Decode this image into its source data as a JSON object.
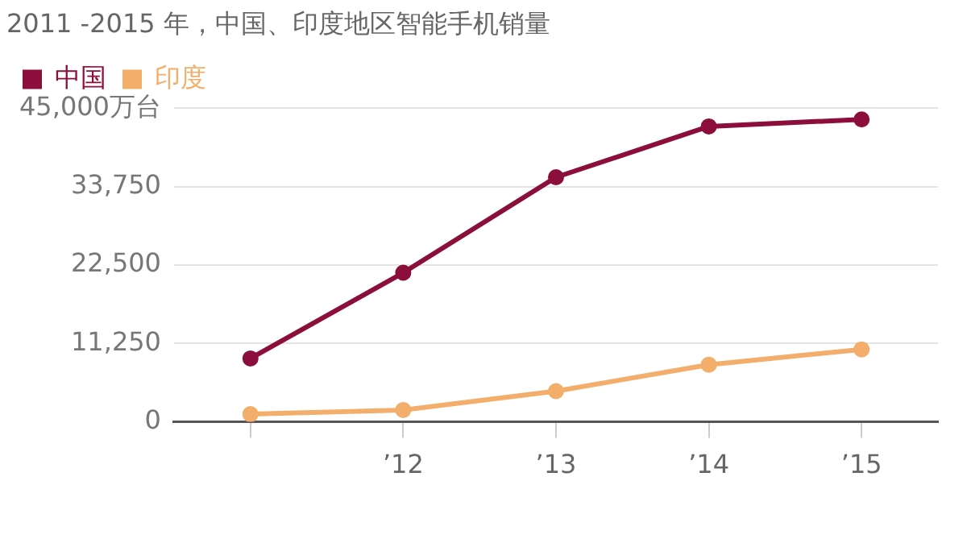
{
  "chart_data": {
    "type": "line",
    "title": "2011 -2015 年，中国、印度地区智能手机销量",
    "categories": [
      null,
      "’12",
      "’13",
      "’14",
      "’15"
    ],
    "series": [
      {
        "name": "中国",
        "color": "#8b0f3a",
        "values": [
          9100,
          21400,
          35100,
          42400,
          43400
        ]
      },
      {
        "name": "印度",
        "color": "#f2ae6a",
        "values": [
          1100,
          1700,
          4400,
          8200,
          10400
        ]
      }
    ],
    "ylim": [
      0,
      45000
    ],
    "yticks": [
      0,
      {
        "value": 11250,
        "label": "11,250"
      },
      {
        "value": 22500,
        "label": "22,500"
      },
      {
        "value": 33750,
        "label": "33,750"
      },
      {
        "value": 45000,
        "label": "45,000万台"
      }
    ],
    "grid": "y",
    "legend": "top left",
    "marker": "circle",
    "line_style": "solid"
  }
}
